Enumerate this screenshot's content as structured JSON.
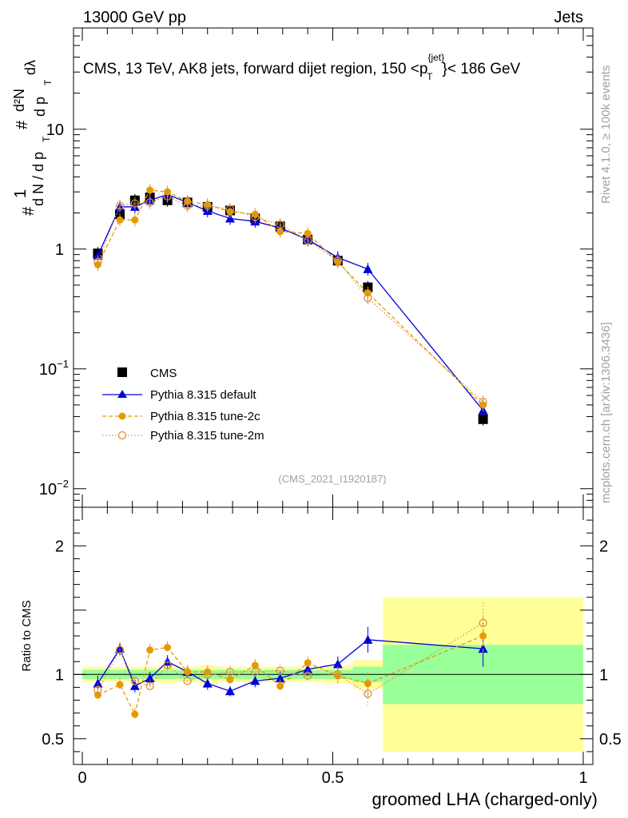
{
  "header": {
    "left": "13000 GeV pp",
    "right": "Jets"
  },
  "main_title": {
    "prefix": "CMS, 13 TeV, AK8 jets, forward dijet region, 150 <p",
    "sup": "{jet}",
    "sub": "T",
    "suffix": "}< 186 GeV"
  },
  "y_label": {
    "hash1": "#",
    "one": "1",
    "dN": "d N / d p",
    "T": "T",
    "hash2": "#",
    "d2N": "d²N",
    "dp": "d p",
    "dlambda": "dλ"
  },
  "side_labels": {
    "rivet": "Rivet 4.1.0, ≥ 100k events",
    "mcplots": "mcplots.cern.ch [arXiv:1306.3436]"
  },
  "analysis_tag": "(CMS_2021_I1920187)",
  "ratio_ylabel": "Ratio to CMS",
  "xlabel": "groomed LHA (charged-only)",
  "legend": [
    {
      "label": "CMS",
      "color": "#000000"
    },
    {
      "label": "Pythia 8.315 default",
      "color": "#0000dd"
    },
    {
      "label": "Pythia 8.315 tune-2c",
      "color": "#e69a00"
    },
    {
      "label": "Pythia 8.315 tune-2m",
      "color": "#d9903a"
    }
  ],
  "chart_data": [
    {
      "type": "scatter",
      "panel": "main",
      "yscale": "log",
      "xlim": [
        0,
        1
      ],
      "ylim": [
        0.007,
        70
      ],
      "y_ticks": [
        {
          "value": 0.01,
          "base": "10",
          "exp": "−2"
        },
        {
          "value": 0.1,
          "base": "10",
          "exp": "−1"
        },
        {
          "value": 1,
          "base": "1",
          "exp": ""
        },
        {
          "value": 10,
          "base": "10",
          "exp": ""
        }
      ],
      "series": [
        {
          "name": "CMS",
          "color": "#000000",
          "x": [
            0.031,
            0.075,
            0.105,
            0.135,
            0.17,
            0.21,
            0.25,
            0.295,
            0.345,
            0.395,
            0.45,
            0.51,
            0.57,
            0.8
          ],
          "y": [
            0.92,
            1.95,
            2.55,
            2.7,
            2.55,
            2.45,
            2.25,
            2.1,
            1.8,
            1.55,
            1.2,
            0.8,
            0.48,
            0.038
          ]
        },
        {
          "name": "Pythia 8.315 default",
          "color": "#0000dd",
          "x": [
            0.031,
            0.075,
            0.105,
            0.135,
            0.17,
            0.21,
            0.25,
            0.295,
            0.345,
            0.395,
            0.45,
            0.51,
            0.57,
            0.8
          ],
          "y": [
            0.88,
            2.25,
            2.25,
            2.55,
            2.85,
            2.45,
            2.08,
            1.8,
            1.7,
            1.5,
            1.2,
            0.85,
            0.68,
            0.045
          ]
        },
        {
          "name": "Pythia 8.315 tune-2c",
          "color": "#e69a00",
          "x": [
            0.031,
            0.075,
            0.105,
            0.135,
            0.17,
            0.21,
            0.25,
            0.295,
            0.345,
            0.395,
            0.45,
            0.51,
            0.57,
            0.8
          ],
          "y": [
            0.74,
            1.75,
            1.75,
            3.1,
            3.0,
            2.5,
            2.35,
            2.05,
            1.95,
            1.4,
            1.35,
            0.78,
            0.43,
            0.05
          ]
        },
        {
          "name": "Pythia 8.315 tune-2m",
          "color": "#d9903a",
          "x": [
            0.031,
            0.075,
            0.105,
            0.135,
            0.17,
            0.21,
            0.25,
            0.295,
            0.345,
            0.395,
            0.45,
            0.51,
            0.57,
            0.8
          ],
          "y": [
            0.78,
            2.3,
            2.4,
            2.45,
            2.75,
            2.3,
            2.3,
            2.15,
            1.85,
            1.6,
            1.18,
            0.8,
            0.39,
            0.053
          ]
        }
      ]
    },
    {
      "type": "scatter",
      "panel": "ratio",
      "xlabel": "groomed LHA (charged-only)",
      "ylabel": "Ratio to CMS",
      "xlim": [
        0,
        1
      ],
      "ylim": [
        0.3,
        2.3
      ],
      "x_ticks": [
        {
          "value": 0,
          "label": "0"
        },
        {
          "value": 0.5,
          "label": "0.5"
        },
        {
          "value": 1,
          "label": "1"
        }
      ],
      "y_ticks": [
        {
          "value": 0.5,
          "label": "0.5"
        },
        {
          "value": 1,
          "label": "1"
        },
        {
          "value": 2,
          "label": "2"
        }
      ],
      "bin_edges": [
        0,
        0.05,
        0.09,
        0.12,
        0.15,
        0.19,
        0.23,
        0.27,
        0.32,
        0.37,
        0.42,
        0.48,
        0.54,
        0.6,
        1.0
      ],
      "band_stat": [
        0.035,
        0.035,
        0.035,
        0.035,
        0.035,
        0.035,
        0.035,
        0.035,
        0.035,
        0.035,
        0.035,
        0.035,
        0.06,
        0.23
      ],
      "band_total": [
        0.06,
        0.06,
        0.06,
        0.06,
        0.07,
        0.06,
        0.07,
        0.06,
        0.06,
        0.06,
        0.06,
        0.07,
        0.11,
        0.6
      ],
      "series": [
        {
          "name": "Pythia 8.315 default",
          "color": "#0000dd",
          "x": [
            0.031,
            0.075,
            0.105,
            0.135,
            0.17,
            0.21,
            0.25,
            0.295,
            0.345,
            0.395,
            0.45,
            0.51,
            0.57,
            0.8
          ],
          "y": [
            0.93,
            1.2,
            0.91,
            0.97,
            1.1,
            1.02,
            0.93,
            0.87,
            0.95,
            0.97,
            1.04,
            1.08,
            1.27,
            1.2
          ],
          "err": [
            0.06,
            0.05,
            0.05,
            0.05,
            0.05,
            0.05,
            0.05,
            0.04,
            0.05,
            0.05,
            0.05,
            0.06,
            0.1,
            0.14
          ]
        },
        {
          "name": "Pythia 8.315 tune-2c",
          "color": "#e69a00",
          "x": [
            0.031,
            0.075,
            0.105,
            0.135,
            0.17,
            0.21,
            0.25,
            0.295,
            0.345,
            0.395,
            0.45,
            0.51,
            0.57,
            0.8
          ],
          "y": [
            0.84,
            0.92,
            0.69,
            1.19,
            1.21,
            1.02,
            1.02,
            0.96,
            1.07,
            0.91,
            1.09,
            0.99,
            0.93,
            1.3
          ],
          "err": [
            0.05,
            0.05,
            0.05,
            0.05,
            0.05,
            0.05,
            0.05,
            0.05,
            0.05,
            0.05,
            0.05,
            0.06,
            0.09,
            0.15
          ]
        },
        {
          "name": "Pythia 8.315 tune-2m",
          "color": "#d9903a",
          "x": [
            0.031,
            0.075,
            0.105,
            0.135,
            0.17,
            0.21,
            0.25,
            0.295,
            0.345,
            0.395,
            0.45,
            0.51,
            0.57,
            0.8
          ],
          "y": [
            0.88,
            1.19,
            0.95,
            0.91,
            1.07,
            0.95,
            1.0,
            1.02,
            1.02,
            1.03,
            0.99,
            1.0,
            0.85,
            1.4
          ],
          "err": [
            0.05,
            0.06,
            0.05,
            0.05,
            0.05,
            0.05,
            0.05,
            0.05,
            0.05,
            0.05,
            0.05,
            0.06,
            0.09,
            0.16
          ]
        }
      ]
    }
  ]
}
